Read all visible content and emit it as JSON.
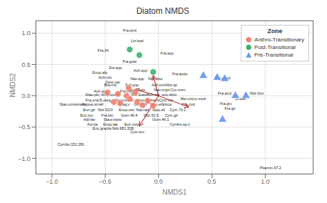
{
  "chart_data": {
    "type": "scatter",
    "title": "Diatom NMDS",
    "xlabel": "NMDS1",
    "ylabel": "NMDS2",
    "xlim": [
      -1.15,
      1.45
    ],
    "ylim": [
      -1.25,
      1.2
    ],
    "xticks": [
      {
        "value": -1.0,
        "label": "−1.0"
      },
      {
        "value": -0.5,
        "label": "−0.5"
      },
      {
        "value": 0.0,
        "label": "0.0"
      },
      {
        "value": 0.5,
        "label": "0.5"
      },
      {
        "value": 1.0,
        "label": "1.0"
      }
    ],
    "yticks": [
      {
        "value": -1.0,
        "label": "−1.0"
      },
      {
        "value": -0.5,
        "label": "−0.5"
      },
      {
        "value": 0.0,
        "label": "0.0"
      },
      {
        "value": 0.5,
        "label": "0.5"
      },
      {
        "value": 1.0,
        "label": "1.0"
      }
    ],
    "grid": true,
    "legend": "upper right",
    "legend_title": "Zone",
    "series": [
      {
        "name": "Anthro-Transitionary",
        "color": "#f08070",
        "marker": "circle",
        "x": [
          -0.38,
          -0.3,
          -0.27,
          -0.2,
          -0.36,
          -0.15,
          -0.1,
          -0.05,
          -0.42,
          -0.48,
          -0.22,
          -0.28
        ],
        "y": [
          0.03,
          0.0,
          -0.05,
          -0.1,
          -0.12,
          -0.15,
          -0.08,
          -0.16,
          -0.1,
          0.05,
          0.05,
          0.12
        ]
      },
      {
        "name": "Post-Transitional",
        "color": "#3cb371",
        "marker": "circle",
        "x": [
          -0.27,
          -0.18,
          -0.05
        ],
        "y": [
          0.74,
          0.65,
          0.38
        ]
      },
      {
        "name": "Pre-Transitional",
        "color": "#6495ed",
        "marker": "triangle",
        "x": [
          0.42,
          0.55,
          0.62,
          0.72,
          0.82,
          0.6
        ],
        "y": [
          0.32,
          0.29,
          0.27,
          0.0,
          0.0,
          -0.38
        ]
      }
    ],
    "arrows": {
      "color": "#cc3333",
      "items": [
        {
          "x0": 0.0,
          "y0": 0.0,
          "x1": -0.05,
          "y1": 0.32
        },
        {
          "x0": 0.0,
          "y0": 0.0,
          "x1": -0.18,
          "y1": -0.48
        },
        {
          "x0": 0.0,
          "y0": 0.0,
          "x1": 0.28,
          "y1": -0.18
        },
        {
          "x0": 0.0,
          "y0": 0.0,
          "x1": -0.22,
          "y1": 0.1
        }
      ]
    },
    "annotations": {
      "color": "#222222",
      "items": [
        {
          "text": "Fra.smil",
          "x": -0.27,
          "y": 1.05
        },
        {
          "text": "Lin.bod",
          "x": -0.2,
          "y": 0.88
        },
        {
          "text": "Fra.24",
          "x": -0.52,
          "y": 0.72
        },
        {
          "text": "Fra.spp",
          "x": 0.08,
          "y": 0.68
        },
        {
          "text": "Fra.grac",
          "x": -0.27,
          "y": 0.55
        },
        {
          "text": "Dis.spp.",
          "x": -0.4,
          "y": 0.45
        },
        {
          "text": "Ach.spp",
          "x": -0.17,
          "y": 0.4
        },
        {
          "text": "Encp.alp",
          "x": -0.55,
          "y": 0.37
        },
        {
          "text": "Fra.ande",
          "x": 0.2,
          "y": 0.35
        },
        {
          "text": "Ach.mic",
          "x": -0.5,
          "y": 0.3
        },
        {
          "text": "Nav.spp",
          "x": -0.2,
          "y": 0.27
        },
        {
          "text": "Nitz.diss",
          "x": -0.03,
          "y": 0.27
        },
        {
          "text": "Gom.var",
          "x": -0.43,
          "y": 0.22
        },
        {
          "text": "Sell.pup",
          "x": -0.25,
          "y": 0.17
        },
        {
          "text": "Bra.mic",
          "x": -0.45,
          "y": 0.17
        },
        {
          "text": "Ach.min",
          "x": 0.0,
          "y": 0.17
        },
        {
          "text": "Nitz.sp",
          "x": 0.12,
          "y": 0.17
        },
        {
          "text": "Ach.sp.ell",
          "x": -0.53,
          "y": 0.07
        },
        {
          "text": "Fra.vau",
          "x": -0.3,
          "y": 0.07
        },
        {
          "text": "Encp.min",
          "x": -0.2,
          "y": 0.1
        },
        {
          "text": "Nav.crypt",
          "x": 0.03,
          "y": 0.1
        },
        {
          "text": "Cyc.men",
          "x": 0.18,
          "y": 0.1
        },
        {
          "text": "Stau.pin",
          "x": -0.62,
          "y": 0.02
        },
        {
          "text": "Amp.ovalis",
          "x": -0.45,
          "y": 0.02
        },
        {
          "text": "Nitz.kuetz",
          "x": -0.18,
          "y": 0.02
        },
        {
          "text": "Ach.cat",
          "x": -0.05,
          "y": 0.02
        },
        {
          "text": "enc.sbro",
          "x": 0.1,
          "y": 0.02
        },
        {
          "text": "Fra.cnst",
          "x": -0.62,
          "y": -0.07
        },
        {
          "text": "D.eleg",
          "x": -0.5,
          "y": -0.07
        },
        {
          "text": "Encp.kram",
          "x": -0.32,
          "y": -0.07
        },
        {
          "text": "Pseudo.brevi",
          "x": -0.1,
          "y": -0.07
        },
        {
          "text": "Cym.vul",
          "x": 0.07,
          "y": -0.07
        },
        {
          "text": "Mer.cir",
          "x": 0.26,
          "y": -0.05
        },
        {
          "text": "Lin.mich",
          "x": 0.38,
          "y": -0.05
        },
        {
          "text": "Stau.construens",
          "x": -0.8,
          "y": -0.13
        },
        {
          "text": "Sti.pup.small",
          "x": -0.62,
          "y": -0.13
        },
        {
          "text": "Frag.v",
          "x": -0.32,
          "y": -0.14
        },
        {
          "text": "Gom.olf",
          "x": -0.17,
          "y": -0.14
        },
        {
          "text": "Stau.elliptica",
          "x": 0.02,
          "y": -0.14
        },
        {
          "text": "Fra.crot",
          "x": 0.28,
          "y": -0.14
        },
        {
          "text": "Eun.gir",
          "x": -0.65,
          "y": -0.22
        },
        {
          "text": "Nitz.52/3",
          "x": -0.5,
          "y": -0.22
        },
        {
          "text": "Encp.cist",
          "x": -0.3,
          "y": -0.22
        },
        {
          "text": "Nav.rad",
          "x": -0.15,
          "y": -0.22
        },
        {
          "text": "Stau.ell",
          "x": 0.0,
          "y": -0.22
        },
        {
          "text": "Cym.73.1",
          "x": 0.18,
          "y": -0.22
        },
        {
          "text": "Enc.lun.",
          "x": -0.67,
          "y": -0.31
        },
        {
          "text": "Fra.bin",
          "x": -0.48,
          "y": -0.31
        },
        {
          "text": "Gom.46.4.",
          "x": -0.27,
          "y": -0.31
        },
        {
          "text": "Nitz.52.5",
          "x": -0.07,
          "y": -0.31
        },
        {
          "text": "Cym.gir",
          "x": 0.12,
          "y": -0.31
        },
        {
          "text": "Adl.fas",
          "x": -0.65,
          "y": -0.38
        },
        {
          "text": "Staur.lepto",
          "x": -0.43,
          "y": -0.38
        },
        {
          "text": "Gom.46.1",
          "x": 0.02,
          "y": -0.38
        },
        {
          "text": "Aul.ita",
          "x": -0.62,
          "y": -0.45
        },
        {
          "text": "Encp.lap",
          "x": -0.45,
          "y": -0.45
        },
        {
          "text": "Eun.mon",
          "x": -0.25,
          "y": -0.45
        },
        {
          "text": "Cymbo.sp.n",
          "x": 0.2,
          "y": -0.45
        },
        {
          "text": "Enc.gracile",
          "x": -0.53,
          "y": -0.52
        },
        {
          "text": "Nitz.681.208.",
          "x": -0.33,
          "y": -0.52
        },
        {
          "text": "Cym.lun",
          "x": -0.2,
          "y": -0.58
        },
        {
          "text": "Cymbo.152.281",
          "x": -0.82,
          "y": -0.78
        },
        {
          "text": "Fra.acusl",
          "x": 0.6,
          "y": 0.28
        },
        {
          "text": "Fra.acul",
          "x": 0.62,
          "y": 0.04
        },
        {
          "text": "Nitz.font",
          "x": 0.92,
          "y": 0.04
        },
        {
          "text": "D.stell",
          "x": 0.77,
          "y": -0.05
        },
        {
          "text": "Fra.grc",
          "x": 0.63,
          "y": -0.12
        },
        {
          "text": "Fra.gir",
          "x": 0.67,
          "y": -0.2
        },
        {
          "text": "Psamm.37.2",
          "x": 1.05,
          "y": -1.15
        }
      ]
    }
  }
}
